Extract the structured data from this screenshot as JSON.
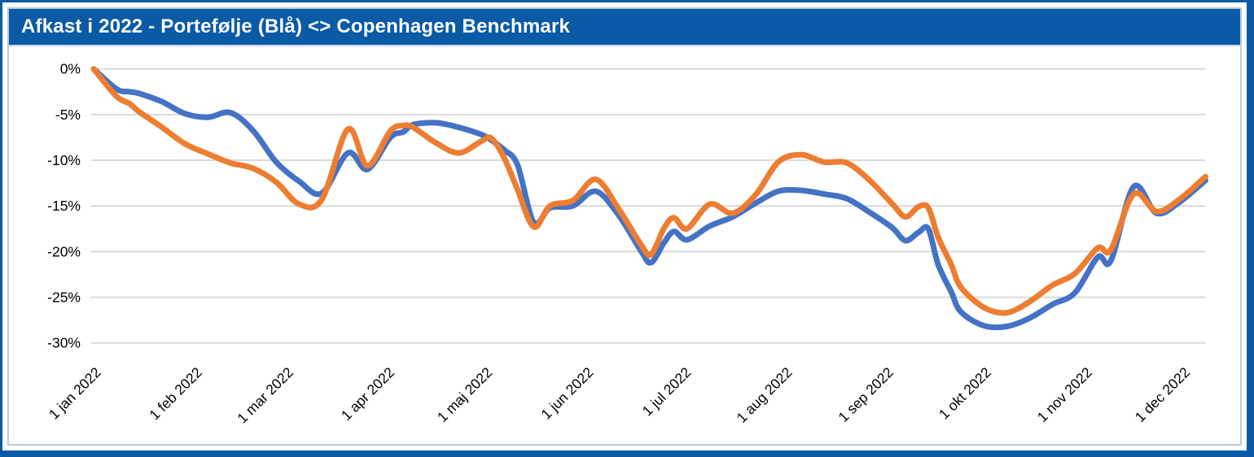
{
  "header": {
    "title": "Afkast i 2022 - Portefølje (Blå) <> Copenhagen Benchmark"
  },
  "colors": {
    "accent_blue": "#0a5aa6",
    "panel_border": "#bccbdb",
    "gridline": "#d9d9d9",
    "portfolio_blue": "#4472c4",
    "benchmark_orange": "#ed7d31",
    "axis_text": "#000000",
    "background": "#ffffff"
  },
  "chart_data": {
    "type": "line",
    "title": "Afkast i 2022 - Portefølje (Blå) <> Copenhagen Benchmark",
    "xlabel": "",
    "ylabel": "",
    "y_unit": "%",
    "ylim": [
      -30,
      0
    ],
    "grid": true,
    "legend_position": "none",
    "series_note": "Blue line = Portefølje (portfolio), orange line = Copenhagen Benchmark; values are year-to-date return in percent",
    "y_ticks": [
      0,
      -5,
      -10,
      -15,
      -20,
      -25,
      -30
    ],
    "y_tick_labels": [
      "0%",
      "-5%",
      "-10%",
      "-15%",
      "-20%",
      "-25%",
      "-30%"
    ],
    "x_tick_labels": [
      "1 jan 2022",
      "1 feb 2022",
      "1 mar 2022",
      "1 apr 2022",
      "1 maj 2022",
      "1 jun 2022",
      "1 jul 2022",
      "1 aug 2022",
      "1 sep 2022",
      "1 okt 2022",
      "1 nov 2022",
      "1 dec 2022"
    ],
    "x_tick_days": [
      0,
      31,
      59,
      90,
      120,
      151,
      181,
      212,
      243,
      273,
      304,
      334
    ],
    "x_range_days": [
      0,
      341
    ],
    "days": [
      0,
      7,
      11,
      14,
      21,
      28,
      35,
      42,
      49,
      56,
      63,
      70,
      78,
      84,
      91,
      95,
      98,
      105,
      112,
      119,
      122,
      126,
      130,
      135,
      140,
      147,
      154,
      161,
      168,
      171,
      175,
      178,
      182,
      189,
      196,
      203,
      210,
      217,
      224,
      231,
      238,
      245,
      249,
      253,
      256,
      259,
      263,
      266,
      273,
      280,
      287,
      294,
      301,
      308,
      312,
      319,
      326,
      333,
      341
    ],
    "dates": [
      "1 jan",
      "8 jan",
      "12 jan",
      "15 jan",
      "22 jan",
      "29 jan",
      "5 feb",
      "12 feb",
      "19 feb",
      "26 feb",
      "5 mar",
      "12 mar",
      "20 mar",
      "26 mar",
      "2 apr",
      "6 apr",
      "9 apr",
      "16 apr",
      "23 apr",
      "30 apr",
      "3 maj",
      "7 maj",
      "11 maj",
      "16 maj",
      "21 maj",
      "28 maj",
      "4 jun",
      "11 jun",
      "18 jun",
      "21 jun",
      "25 jun",
      "28 jun",
      "2 jul",
      "9 jul",
      "16 jul",
      "23 jul",
      "30 jul",
      "6 aug",
      "13 aug",
      "20 aug",
      "27 aug",
      "3 sep",
      "7 sep",
      "11 sep",
      "14 sep",
      "17 sep",
      "21 sep",
      "24 sep",
      "1 okt",
      "8 okt",
      "15 okt",
      "22 okt",
      "29 okt",
      "5 nov",
      "9 nov",
      "16 nov",
      "23 nov",
      "30 nov",
      "8 dec"
    ],
    "series": [
      {
        "id": "portefolje",
        "name": "Portefølje",
        "color": "#4472c4",
        "values": [
          0.0,
          -2.2,
          -2.5,
          -2.7,
          -3.6,
          -4.9,
          -5.3,
          -4.8,
          -6.8,
          -10.2,
          -12.3,
          -13.6,
          -9.2,
          -11.0,
          -7.5,
          -6.9,
          -6.1,
          -5.9,
          -6.4,
          -7.2,
          -7.8,
          -8.9,
          -10.5,
          -16.8,
          -15.2,
          -15.0,
          -13.4,
          -16.0,
          -20.0,
          -21.2,
          -19.0,
          -17.8,
          -18.7,
          -17.2,
          -16.2,
          -14.7,
          -13.4,
          -13.3,
          -13.7,
          -14.2,
          -15.7,
          -17.4,
          -18.8,
          -17.9,
          -17.5,
          -21.4,
          -24.4,
          -26.6,
          -28.1,
          -28.2,
          -27.3,
          -25.8,
          -24.5,
          -20.6,
          -21.0,
          -12.9,
          -15.8,
          -14.6,
          -12.2
        ]
      },
      {
        "id": "benchmark",
        "name": "Copenhagen Benchmark",
        "color": "#ed7d31",
        "values": [
          0.0,
          -3.0,
          -3.8,
          -4.7,
          -6.4,
          -8.2,
          -9.3,
          -10.3,
          -10.9,
          -12.4,
          -14.8,
          -14.3,
          -6.6,
          -10.6,
          -6.8,
          -6.2,
          -6.4,
          -8.1,
          -9.2,
          -7.9,
          -7.6,
          -9.8,
          -13.2,
          -17.3,
          -15.0,
          -14.4,
          -12.1,
          -15.3,
          -19.3,
          -20.3,
          -17.4,
          -16.3,
          -17.5,
          -14.8,
          -15.8,
          -13.8,
          -10.2,
          -9.4,
          -10.2,
          -10.3,
          -12.2,
          -14.8,
          -16.2,
          -15.1,
          -15.2,
          -18.4,
          -21.4,
          -23.9,
          -26.1,
          -26.7,
          -25.5,
          -23.7,
          -22.4,
          -19.6,
          -19.8,
          -13.7,
          -15.6,
          -14.3,
          -11.8
        ]
      }
    ]
  }
}
